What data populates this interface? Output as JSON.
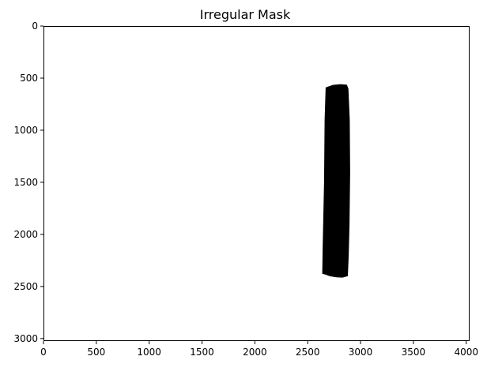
{
  "chart_data": {
    "type": "heatmap",
    "title": "Irregular Mask",
    "xlabel": "",
    "ylabel": "",
    "xlim": [
      0,
      4032
    ],
    "ylim": [
      3024,
      0
    ],
    "y_inverted": true,
    "grid": false,
    "legend": "none",
    "x_ticks": [
      0,
      500,
      1000,
      1500,
      2000,
      2500,
      3000,
      3500,
      4000
    ],
    "x_tick_labels": [
      "0",
      "500",
      "1000",
      "1500",
      "2000",
      "2500",
      "3000",
      "3500",
      "4000"
    ],
    "y_ticks": [
      0,
      500,
      1000,
      1500,
      2000,
      2500,
      3000
    ],
    "y_tick_labels": [
      "0",
      "500",
      "1000",
      "1500",
      "2000",
      "2500",
      "3000"
    ],
    "background_color": "#ffffff",
    "mask_color": "#000000",
    "mask_region": {
      "shape": "irregular-vertical-band",
      "outline": [
        [
          2670,
          590
        ],
        [
          2740,
          565
        ],
        [
          2810,
          558
        ],
        [
          2870,
          562
        ],
        [
          2885,
          600
        ],
        [
          2898,
          900
        ],
        [
          2902,
          1400
        ],
        [
          2896,
          1900
        ],
        [
          2888,
          2200
        ],
        [
          2880,
          2400
        ],
        [
          2830,
          2415
        ],
        [
          2770,
          2412
        ],
        [
          2710,
          2402
        ],
        [
          2665,
          2385
        ],
        [
          2638,
          2378
        ],
        [
          2642,
          2100
        ],
        [
          2655,
          1500
        ],
        [
          2660,
          900
        ]
      ]
    }
  }
}
